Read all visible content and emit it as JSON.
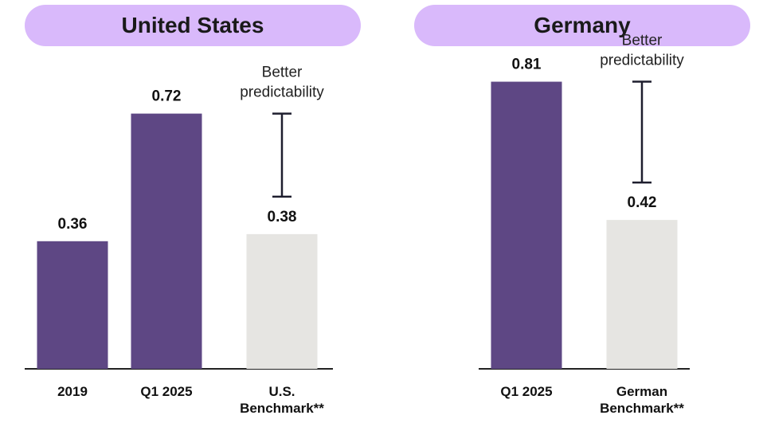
{
  "chart_data": [
    {
      "type": "bar",
      "title": "United States",
      "categories": [
        "2019",
        "Q1 2025",
        "U.S. Benchmark**"
      ],
      "values": [
        0.36,
        0.72,
        0.38
      ],
      "colors": [
        "#5e4784",
        "#5e4784",
        "#e6e5e2"
      ],
      "annotation": {
        "text_line1": "Better",
        "text_line2": "predictability",
        "range": [
          0.38,
          0.72
        ],
        "category_index": 2
      }
    },
    {
      "type": "bar",
      "title": "Germany",
      "categories": [
        "Q1 2025",
        "German Benchmark**"
      ],
      "values": [
        0.81,
        0.42
      ],
      "colors": [
        "#5e4784",
        "#e6e5e2"
      ],
      "annotation": {
        "text_line1": "Better",
        "text_line2": "predictability",
        "range": [
          0.42,
          0.81
        ],
        "category_index": 1
      }
    }
  ]
}
